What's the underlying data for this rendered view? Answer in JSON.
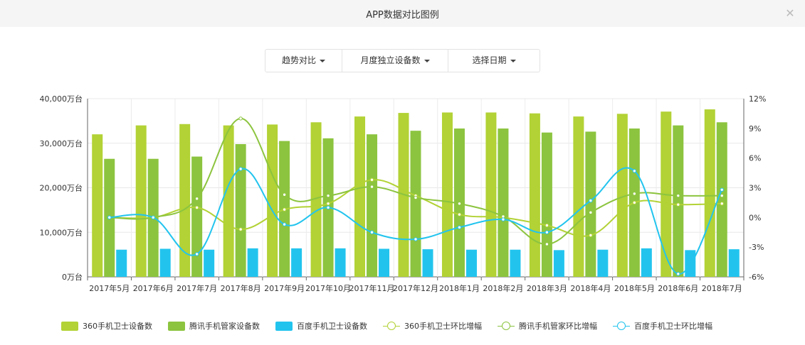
{
  "window": {
    "title": "APP数据对比图例",
    "close_icon": "close-icon"
  },
  "toolbar": {
    "trend_label": "趋势对比",
    "metric_label": "月度独立设备数",
    "date_label": "选择日期"
  },
  "colors": {
    "bar_360": "#b2d235",
    "bar_tencent": "#8cc43f",
    "bar_baidu": "#22c4ee",
    "line_360": "#b2d235",
    "line_tencent": "#8cc43f",
    "line_baidu": "#22c4ee"
  },
  "chart_data": {
    "type": "bar",
    "categories": [
      "2017年5月",
      "2017年6月",
      "2017年7月",
      "2017年8月",
      "2017年9月",
      "2017年10月",
      "2017年11月",
      "2017年12月",
      "2018年1月",
      "2018年2月",
      "2018年3月",
      "2018年4月",
      "2018年5月",
      "2018年6月",
      "2018年7月"
    ],
    "y_left": {
      "min": 0,
      "max": 40000,
      "ticks": [
        0,
        10000,
        20000,
        30000,
        40000
      ],
      "tick_labels": [
        "0万台",
        "10,000万台",
        "20,000万台",
        "30,000万台",
        "40,000万台"
      ]
    },
    "y_right": {
      "min": -6,
      "max": 12,
      "ticks": [
        -6,
        -3,
        0,
        3,
        6,
        9,
        12
      ],
      "tick_labels": [
        "-6%",
        "-3%",
        "0%",
        "3%",
        "6%",
        "9%",
        "12%"
      ]
    },
    "grid": true,
    "legend_position": "bottom",
    "series": [
      {
        "name": "360手机卫士设备数",
        "kind": "bar",
        "axis": "left",
        "values": [
          32000,
          34000,
          34300,
          34000,
          34200,
          34700,
          36000,
          36800,
          36900,
          36900,
          36700,
          36000,
          36600,
          37100,
          37600
        ]
      },
      {
        "name": "腾讯手机管家设备数",
        "kind": "bar",
        "axis": "left",
        "values": [
          26500,
          26500,
          27000,
          29800,
          30500,
          31100,
          32000,
          32800,
          33300,
          33300,
          32400,
          32600,
          33300,
          34000,
          34700
        ]
      },
      {
        "name": "百度手机卫士设备数",
        "kind": "bar",
        "axis": "left",
        "values": [
          6100,
          6300,
          6100,
          6400,
          6400,
          6400,
          6300,
          6200,
          6100,
          6100,
          6000,
          6100,
          6400,
          6000,
          6200
        ]
      },
      {
        "name": "360手机卫士环比增幅",
        "kind": "line",
        "axis": "right",
        "values": [
          0,
          0,
          1.0,
          -1.2,
          0.8,
          1.4,
          3.8,
          2.2,
          0.3,
          0.0,
          -0.8,
          -1.8,
          1.5,
          1.3,
          1.4
        ]
      },
      {
        "name": "腾讯手机管家环比增幅",
        "kind": "line",
        "axis": "right",
        "values": [
          0,
          0,
          1.9,
          10.0,
          2.3,
          2.2,
          3.1,
          2.0,
          1.4,
          0.1,
          -2.7,
          0.5,
          2.4,
          2.2,
          2.2
        ]
      },
      {
        "name": "百度手机卫士环比增幅",
        "kind": "line",
        "axis": "right",
        "values": [
          0,
          0,
          -3.7,
          4.9,
          -0.7,
          1.0,
          -1.5,
          -2.2,
          -1.0,
          -0.2,
          -1.5,
          1.7,
          4.7,
          -5.7,
          2.8
        ]
      }
    ]
  }
}
